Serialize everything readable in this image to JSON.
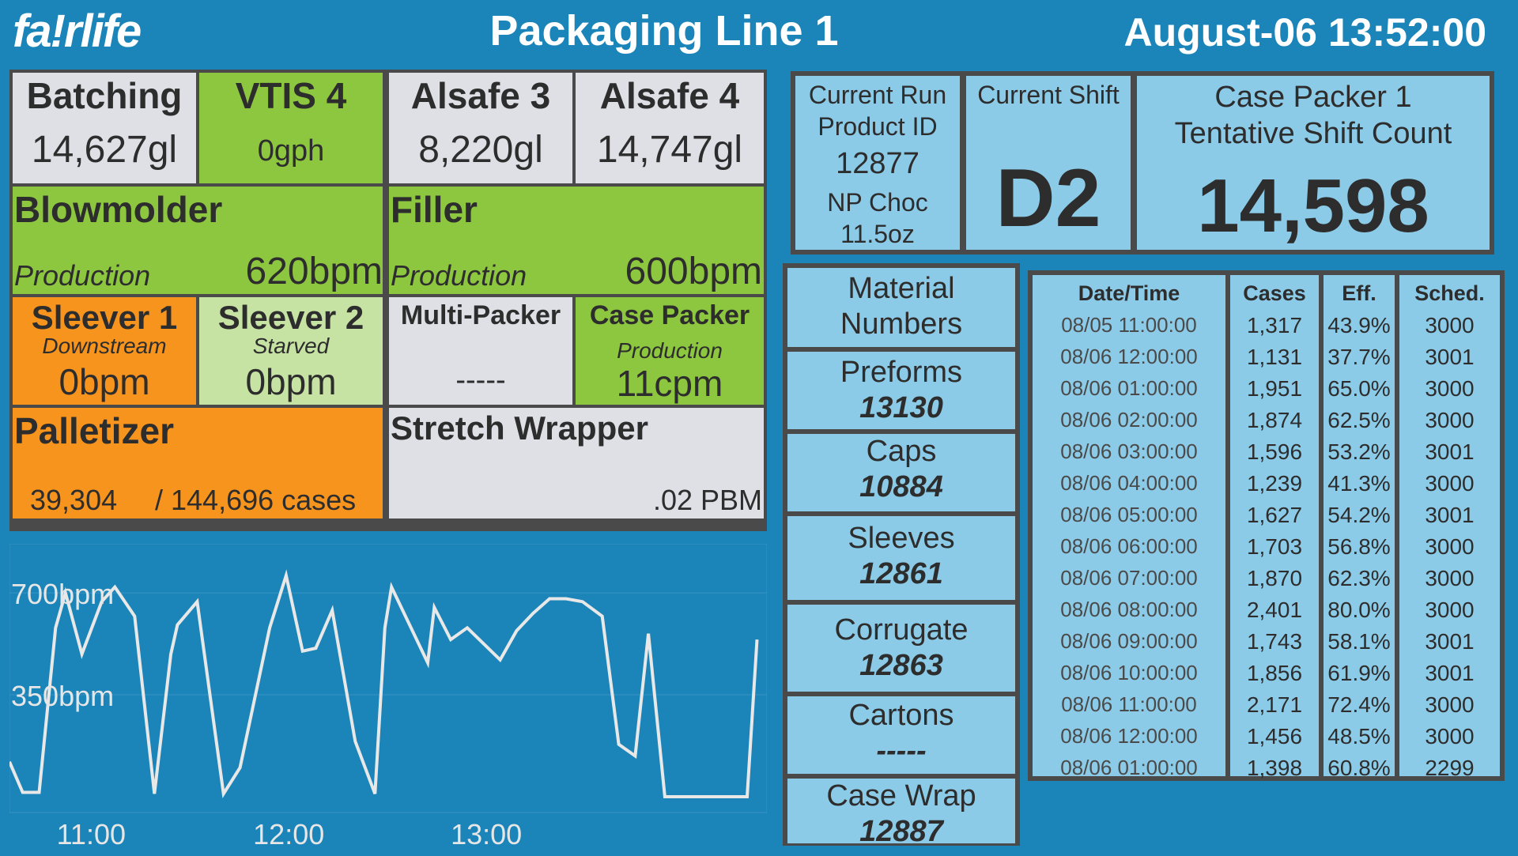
{
  "header": {
    "logo": "fa!rlife",
    "title": "Packaging Line 1",
    "datetime": "August-06 13:52:00"
  },
  "board": {
    "batching": {
      "name": "Batching",
      "value": "14,627gl"
    },
    "vtis": {
      "name": "VTIS 4",
      "value": "0gph"
    },
    "alsafe3": {
      "name": "Alsafe 3",
      "value": "8,220gl"
    },
    "alsafe4": {
      "name": "Alsafe 4",
      "value": "14,747gl"
    },
    "blowmolder": {
      "name": "Blowmolder",
      "state": "Production",
      "value": "620bpm"
    },
    "filler": {
      "name": "Filler",
      "state": "Production",
      "value": "600bpm"
    },
    "sleever1": {
      "name": "Sleever 1",
      "state": "Downstream",
      "value": "0bpm"
    },
    "sleever2": {
      "name": "Sleever 2",
      "state": "Starved",
      "value": "0bpm"
    },
    "multipacker": {
      "name": "Multi-Packer",
      "value": "-----"
    },
    "casepacker": {
      "name": "Case Packer",
      "state": "Production",
      "value": "11cpm"
    },
    "palletizer": {
      "name": "Palletizer",
      "count": "39,304",
      "total": "/ 144,696 cases"
    },
    "stretchwrapper": {
      "name": "Stretch Wrapper",
      "value": ".02 PBM"
    }
  },
  "chart_data": {
    "type": "line",
    "y_tick_labels": [
      "700bpm",
      "350bpm"
    ],
    "y_ticks": [
      700,
      350
    ],
    "x_tick_labels": [
      "11:00",
      "12:00",
      "13:00"
    ],
    "ylim": [
      0,
      760
    ],
    "x_minutes": [
      0,
      4,
      9,
      14,
      17,
      22,
      28,
      32,
      38,
      44,
      49,
      51,
      57,
      65,
      70,
      79,
      84,
      89,
      93,
      98,
      105,
      111,
      114,
      116,
      127,
      129,
      134,
      139,
      149,
      154,
      159,
      164,
      169,
      174,
      180,
      185,
      190,
      194,
      199,
      204,
      209,
      214,
      224,
      227
    ],
    "values": [
      120,
      15,
      15,
      580,
      700,
      490,
      670,
      720,
      620,
      10,
      490,
      590,
      670,
      10,
      100,
      580,
      760,
      500,
      510,
      640,
      190,
      10,
      580,
      720,
      460,
      650,
      540,
      580,
      470,
      570,
      630,
      680,
      680,
      670,
      620,
      180,
      140,
      560,
      0,
      0,
      0,
      0,
      0,
      540
    ],
    "series_color": "#e8e8e8"
  },
  "info": {
    "run_label1": "Current Run",
    "run_label2": "Product ID",
    "run_id": "12877",
    "run_product1": "NP Choc",
    "run_product2": "11.5oz",
    "shift_label": "Current Shift",
    "shift": "D2",
    "count_label1": "Case Packer 1",
    "count_label2": "Tentative Shift Count",
    "count": "14,598"
  },
  "materials": {
    "header1": "Material",
    "header2": "Numbers",
    "items": [
      {
        "label": "Preforms",
        "number": "13130"
      },
      {
        "label": "Caps",
        "number": "10884"
      },
      {
        "label": "Sleeves",
        "number": "12861"
      },
      {
        "label": "Corrugate",
        "number": "12863"
      },
      {
        "label": "Cartons",
        "number": "-----"
      },
      {
        "label": "Case Wrap",
        "number": "12887"
      }
    ]
  },
  "history": {
    "headers": [
      "Date/Time",
      "Cases",
      "Eff.",
      "Sched."
    ],
    "rows": [
      [
        "08/05 11:00:00",
        "1,317",
        "43.9%",
        "3000"
      ],
      [
        "08/06 12:00:00",
        "1,131",
        "37.7%",
        "3001"
      ],
      [
        "08/06 01:00:00",
        "1,951",
        "65.0%",
        "3000"
      ],
      [
        "08/06 02:00:00",
        "1,874",
        "62.5%",
        "3000"
      ],
      [
        "08/06 03:00:00",
        "1,596",
        "53.2%",
        "3001"
      ],
      [
        "08/06 04:00:00",
        "1,239",
        "41.3%",
        "3000"
      ],
      [
        "08/06 05:00:00",
        "1,627",
        "54.2%",
        "3001"
      ],
      [
        "08/06 06:00:00",
        "1,703",
        "56.8%",
        "3000"
      ],
      [
        "08/06 07:00:00",
        "1,870",
        "62.3%",
        "3000"
      ],
      [
        "08/06 08:00:00",
        "2,401",
        "80.0%",
        "3000"
      ],
      [
        "08/06 09:00:00",
        "1,743",
        "58.1%",
        "3001"
      ],
      [
        "08/06 10:00:00",
        "1,856",
        "61.9%",
        "3001"
      ],
      [
        "08/06 11:00:00",
        "2,171",
        "72.4%",
        "3000"
      ],
      [
        "08/06 12:00:00",
        "1,456",
        "48.5%",
        "3000"
      ],
      [
        "08/06 01:00:00",
        "1,398",
        "60.8%",
        "2299"
      ]
    ]
  }
}
